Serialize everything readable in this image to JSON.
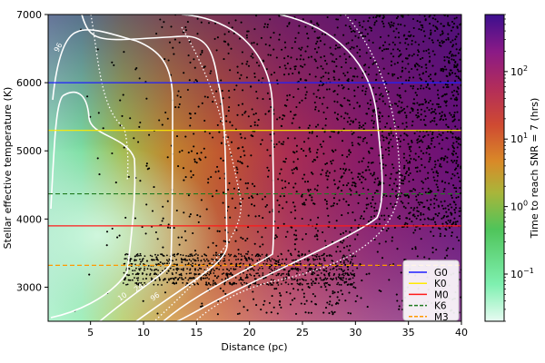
{
  "chart_data": {
    "type": "heatmap",
    "xlabel": "Distance (pc)",
    "ylabel": "Stellar effective temperature (K)",
    "xlim": [
      1,
      40
    ],
    "ylim": [
      2500,
      7000
    ],
    "x_ticks": [
      5,
      10,
      15,
      20,
      25,
      30,
      35,
      40
    ],
    "y_ticks": [
      3000,
      4000,
      5000,
      6000,
      7000
    ],
    "colorbar": {
      "label": "Time to reach SNR = 7 (hrs)",
      "scale": "log",
      "range": [
        0.02,
        700
      ],
      "ticks": [
        {
          "value": 0.1,
          "base": "10",
          "exp": "−1"
        },
        {
          "value": 1,
          "base": "10",
          "exp": "0"
        },
        {
          "value": 10,
          "base": "10",
          "exp": "1"
        },
        {
          "value": 100,
          "base": "10",
          "exp": "2"
        }
      ]
    },
    "reference_lines": [
      {
        "name": "G0",
        "y": 6000,
        "color": "#1f1fff",
        "style": "solid"
      },
      {
        "name": "K0",
        "y": 5300,
        "color": "#ffea00",
        "style": "solid"
      },
      {
        "name": "M0",
        "y": 3900,
        "color": "#ff1a1a",
        "style": "solid"
      },
      {
        "name": "K6",
        "y": 4370,
        "color": "#1f7a1f",
        "style": "dashed"
      },
      {
        "name": "M3",
        "y": 3320,
        "color": "#ff9900",
        "style": "dashed"
      }
    ],
    "contour_labels": [
      "96",
      "10",
      "24",
      "96"
    ],
    "legend_position": "lower-right"
  }
}
